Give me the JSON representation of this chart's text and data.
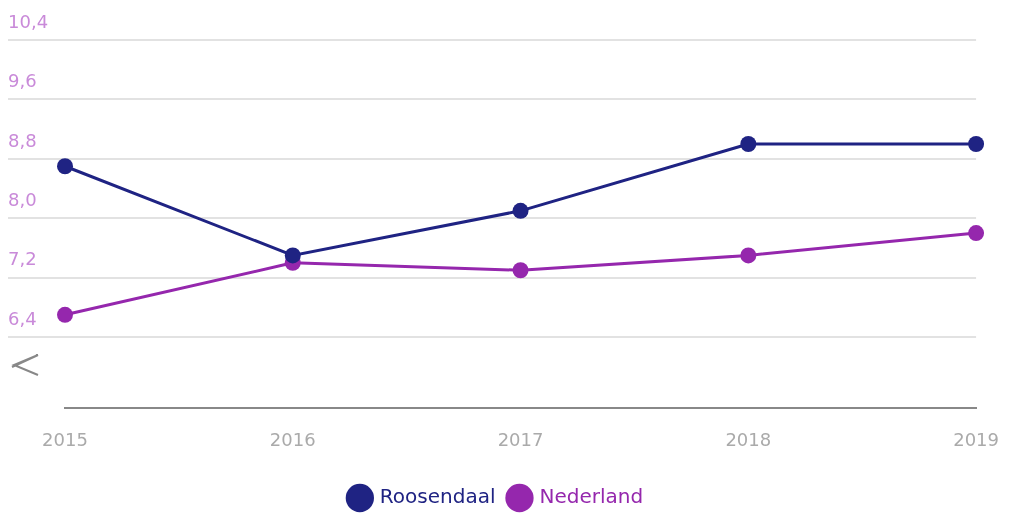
{
  "chart_data": {
    "type": "line",
    "categories": [
      "2015",
      "2016",
      "2017",
      "2018",
      "2019"
    ],
    "series": [
      {
        "name": "Roosendaal",
        "color": "#1f2383",
        "values": [
          8.7,
          7.5,
          8.1,
          9.0,
          9.0
        ]
      },
      {
        "name": "Nederland",
        "color": "#9527ad",
        "values": [
          6.7,
          7.4,
          7.3,
          7.5,
          7.8
        ]
      }
    ],
    "ylim": [
      5.44,
      10.4
    ],
    "yticks": [
      {
        "value": 6.4,
        "label": "6,4"
      },
      {
        "value": 7.2,
        "label": "7,2"
      },
      {
        "value": 8.0,
        "label": "8,0"
      },
      {
        "value": 8.8,
        "label": "8,8"
      },
      {
        "value": 9.6,
        "label": "9,6"
      },
      {
        "value": 10.4,
        "label": "10,4"
      }
    ],
    "grid": "y",
    "legend": "bottom",
    "marker": "circle",
    "line_style": "solid"
  }
}
